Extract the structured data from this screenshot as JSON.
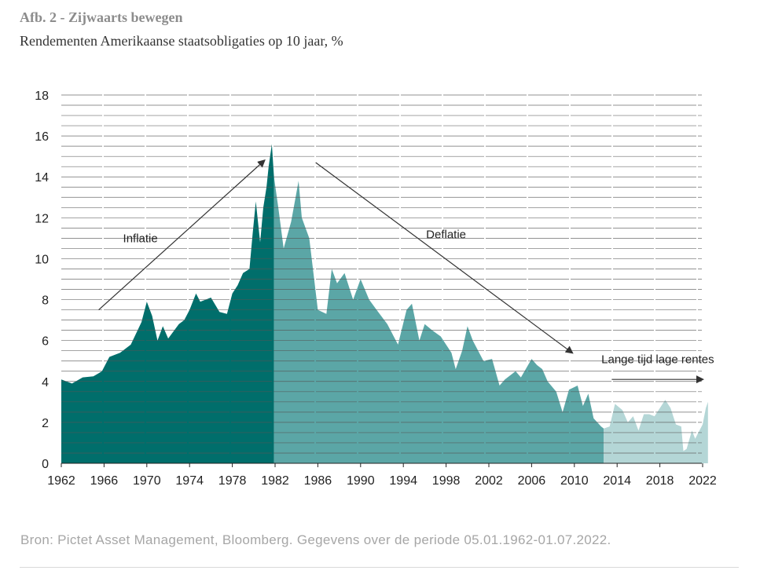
{
  "title": "Afb. 2 - Zijwaarts bewegen",
  "subtitle": "Rendementen Amerikaanse staatsobligaties op 10 jaar, %",
  "source": "Bron: Pictet Asset Management, Bloomberg. Gegevens over de periode 05.01.1962-01.07.2022.",
  "colors": {
    "inflation_period": "#006e6b",
    "deflation_period": "#5ba6a6",
    "low_rates_period": "#b4d6d6",
    "gridline": "#555555",
    "arrow": "#333333",
    "text": "#222222"
  },
  "chart_data": {
    "type": "area",
    "title": "Rendementen Amerikaanse staatsobligaties op 10 jaar, %",
    "xlabel": "",
    "ylabel": "%",
    "xlim": [
      1962,
      2022.5
    ],
    "ylim": [
      0,
      18
    ],
    "x_ticks": [
      1962,
      1966,
      1970,
      1974,
      1978,
      1982,
      1986,
      1990,
      1994,
      1998,
      2002,
      2006,
      2010,
      2014,
      2018,
      2022
    ],
    "y_ticks": [
      0,
      2,
      4,
      6,
      8,
      10,
      12,
      14,
      16,
      18
    ],
    "grid_step": 0.5,
    "series": [
      {
        "name": "Inflatie",
        "x": [
          1962,
          1963,
          1964,
          1965,
          1965.8,
          1966.5,
          1967.5,
          1968.5,
          1969.5,
          1970,
          1970.5,
          1971,
          1971.5,
          1972,
          1973,
          1973.5,
          1974,
          1974.6,
          1975,
          1976,
          1976.8,
          1977.5,
          1978,
          1978.5,
          1979,
          1979.6,
          1979.9,
          1980.2,
          1980.6,
          1980.9,
          1981.2,
          1981.4,
          1981.7,
          1981.9
        ],
        "values": [
          4.1,
          3.9,
          4.2,
          4.25,
          4.5,
          5.2,
          5.4,
          5.8,
          6.9,
          7.9,
          7.2,
          6.0,
          6.7,
          6.1,
          6.8,
          7.0,
          7.5,
          8.3,
          7.9,
          8.1,
          7.4,
          7.3,
          8.3,
          8.7,
          9.3,
          9.5,
          11.2,
          12.8,
          10.8,
          12.5,
          13.5,
          14.5,
          15.6,
          14.0
        ]
      },
      {
        "name": "Deflatie",
        "x": [
          1981.9,
          1982.3,
          1982.8,
          1983.5,
          1984.2,
          1984.5,
          1985.2,
          1986,
          1986.8,
          1987.3,
          1987.8,
          1988.5,
          1989.3,
          1990,
          1990.8,
          1991.5,
          1992.5,
          1993.5,
          1994.3,
          1994.8,
          1995.5,
          1996,
          1996.7,
          1997.5,
          1998.5,
          1998.9,
          1999.5,
          2000,
          2000.5,
          2001.5,
          2002.3,
          2003,
          2003.5,
          2004.5,
          2005,
          2006,
          2006.5,
          2007,
          2007.5,
          2008.3,
          2008.9,
          2009.5,
          2010.3,
          2010.8,
          2011.3,
          2011.8,
          2012.5,
          2012.75
        ],
        "values": [
          14.0,
          12.5,
          10.5,
          11.8,
          13.8,
          12.0,
          11.0,
          7.5,
          7.3,
          9.5,
          8.8,
          9.3,
          8.0,
          9.0,
          8.0,
          7.5,
          6.8,
          5.8,
          7.5,
          7.8,
          6.0,
          6.8,
          6.5,
          6.2,
          5.4,
          4.6,
          5.5,
          6.7,
          6.0,
          5.0,
          5.1,
          3.8,
          4.1,
          4.5,
          4.2,
          5.1,
          4.8,
          4.6,
          4.0,
          3.5,
          2.5,
          3.6,
          3.8,
          2.8,
          3.4,
          2.2,
          1.8,
          1.7
        ]
      },
      {
        "name": "Lange tijd lage rentes",
        "x": [
          2012.75,
          2013.3,
          2013.8,
          2014.5,
          2015,
          2015.5,
          2016,
          2016.5,
          2017,
          2017.5,
          2018.5,
          2019,
          2019.5,
          2020,
          2020.2,
          2020.5,
          2021,
          2021.3,
          2021.6,
          2022,
          2022.3,
          2022.5
        ],
        "values": [
          1.7,
          1.8,
          2.9,
          2.6,
          2.0,
          2.3,
          1.6,
          2.4,
          2.4,
          2.3,
          3.1,
          2.7,
          1.9,
          1.8,
          0.6,
          0.7,
          1.6,
          1.2,
          1.5,
          1.9,
          2.7,
          3.0
        ]
      }
    ],
    "annotations": [
      {
        "text": "Inflatie",
        "arrow_from": [
          1965.5,
          7.5
        ],
        "arrow_to": [
          1981.0,
          14.8
        ]
      },
      {
        "text": "Deflatie",
        "arrow_from": [
          1985.8,
          14.7
        ],
        "arrow_to": [
          2009.8,
          5.4
        ]
      },
      {
        "text": "Lange tijd lage rentes",
        "arrow_from": [
          2013.5,
          4.1
        ],
        "arrow_to": [
          2022.0,
          4.1
        ]
      }
    ]
  }
}
